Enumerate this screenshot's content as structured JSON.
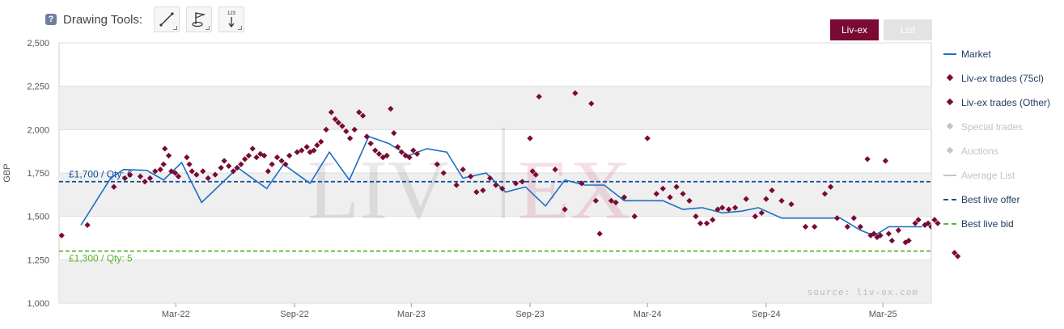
{
  "toolbar": {
    "help_label": "?",
    "title": "Drawing Tools:",
    "tools": [
      {
        "name": "line-tool",
        "icon": "diagonal-line-icon"
      },
      {
        "name": "flag-tool",
        "icon": "flag-marker-icon"
      },
      {
        "name": "value-marker-tool",
        "icon": "number-arrow-icon",
        "label": "123"
      }
    ]
  },
  "tabs": [
    {
      "label": "Liv-ex",
      "active": true
    },
    {
      "label": "List",
      "active": false
    }
  ],
  "legend": [
    {
      "label": "Market",
      "symbol": "line",
      "color": "#1a6fc4",
      "enabled": true
    },
    {
      "label": "Liv-ex trades (75cl)",
      "symbol": "diamond",
      "color": "#7a0a33",
      "enabled": true
    },
    {
      "label": "Liv-ex trades (Other)",
      "symbol": "diamond",
      "color": "#7a0a33",
      "enabled": true
    },
    {
      "label": "Special trades",
      "symbol": "diamond",
      "color": "#c4c4c4",
      "enabled": false
    },
    {
      "label": "Auctions",
      "symbol": "diamond",
      "color": "#c4c4c4",
      "enabled": false
    },
    {
      "label": "Average List",
      "symbol": "line",
      "color": "#c4c4c4",
      "enabled": false
    },
    {
      "label": "Best live offer",
      "symbol": "dash",
      "color": "#0d4f9c",
      "enabled": true
    },
    {
      "label": "Best live bid",
      "symbol": "dash",
      "color": "#5ab52e",
      "enabled": true
    }
  ],
  "chart_data": {
    "type": "scatter",
    "ylabel": "GBP",
    "ylim": [
      1000,
      2500
    ],
    "yticks": [
      1000,
      1250,
      1500,
      1750,
      2000,
      2250,
      2500
    ],
    "ytick_labels": [
      "1,000",
      "1,250",
      "1,500",
      "1,750",
      "2,000",
      "2,250",
      "2,500"
    ],
    "x_range": [
      "2021-09-01",
      "2025-05-15"
    ],
    "xticks": [
      "2022-03-01",
      "2022-09-01",
      "2023-03-01",
      "2023-09-01",
      "2024-03-01",
      "2024-09-01",
      "2025-03-01"
    ],
    "xtick_labels": [
      "Mar-22",
      "Sep-22",
      "Mar-23",
      "Sep-23",
      "Mar-24",
      "Sep-24",
      "Mar-25"
    ],
    "grid": "alternating horizontal bands",
    "watermark": "LIV-EX",
    "source_note": "source: liv-ex.com",
    "best_offer": {
      "value": 1700,
      "label": "£1,700 / Qty: 6",
      "color": "#0d4f9c"
    },
    "best_bid": {
      "value": 1300,
      "label": "£1,300 / Qty: 5",
      "color": "#5ab52e"
    },
    "series": [
      {
        "name": "Market",
        "kind": "line",
        "color": "#1a6fc4",
        "points": [
          [
            "2021-10-05",
            1450
          ],
          [
            "2021-11-20",
            1720
          ],
          [
            "2021-12-10",
            1770
          ],
          [
            "2022-01-15",
            1765
          ],
          [
            "2022-02-10",
            1710
          ],
          [
            "2022-03-10",
            1810
          ],
          [
            "2022-04-10",
            1580
          ],
          [
            "2022-06-05",
            1780
          ],
          [
            "2022-07-20",
            1660
          ],
          [
            "2022-08-15",
            1800
          ],
          [
            "2022-09-25",
            1690
          ],
          [
            "2022-10-25",
            1870
          ],
          [
            "2022-11-25",
            1710
          ],
          [
            "2022-12-25",
            1960
          ],
          [
            "2023-01-25",
            1920
          ],
          [
            "2023-02-25",
            1850
          ],
          [
            "2023-03-25",
            1890
          ],
          [
            "2023-04-25",
            1870
          ],
          [
            "2023-05-20",
            1720
          ],
          [
            "2023-06-25",
            1750
          ],
          [
            "2023-07-25",
            1640
          ],
          [
            "2023-08-25",
            1670
          ],
          [
            "2023-09-25",
            1560
          ],
          [
            "2023-10-25",
            1710
          ],
          [
            "2023-11-25",
            1680
          ],
          [
            "2023-12-25",
            1680
          ],
          [
            "2024-01-25",
            1590
          ],
          [
            "2024-02-25",
            1590
          ],
          [
            "2024-03-25",
            1590
          ],
          [
            "2024-04-25",
            1540
          ],
          [
            "2024-05-25",
            1550
          ],
          [
            "2024-06-25",
            1520
          ],
          [
            "2024-07-25",
            1530
          ],
          [
            "2024-08-20",
            1550
          ],
          [
            "2024-09-25",
            1490
          ],
          [
            "2024-10-25",
            1490
          ],
          [
            "2024-11-25",
            1490
          ],
          [
            "2024-12-25",
            1490
          ],
          [
            "2025-01-25",
            1420
          ],
          [
            "2025-02-15",
            1390
          ],
          [
            "2025-02-25",
            1410
          ],
          [
            "2025-03-10",
            1440
          ],
          [
            "2025-04-10",
            1440
          ],
          [
            "2025-05-01",
            1440
          ]
        ]
      },
      {
        "name": "Liv-ex trades (75cl)",
        "kind": "scatter",
        "color": "#7a0a33",
        "points": [
          [
            "2021-09-05",
            1390
          ],
          [
            "2021-10-15",
            1450
          ],
          [
            "2021-11-25",
            1670
          ],
          [
            "2021-12-12",
            1720
          ],
          [
            "2021-12-20",
            1740
          ],
          [
            "2022-01-05",
            1730
          ],
          [
            "2022-01-12",
            1700
          ],
          [
            "2022-01-20",
            1720
          ],
          [
            "2022-01-28",
            1760
          ],
          [
            "2022-02-05",
            1770
          ],
          [
            "2022-02-10",
            1800
          ],
          [
            "2022-02-12",
            1890
          ],
          [
            "2022-02-18",
            1850
          ],
          [
            "2022-02-22",
            1760
          ],
          [
            "2022-02-28",
            1750
          ],
          [
            "2022-03-05",
            1730
          ],
          [
            "2022-03-18",
            1840
          ],
          [
            "2022-03-22",
            1800
          ],
          [
            "2022-03-26",
            1760
          ],
          [
            "2022-04-02",
            1740
          ],
          [
            "2022-04-12",
            1760
          ],
          [
            "2022-04-20",
            1720
          ],
          [
            "2022-05-01",
            1740
          ],
          [
            "2022-05-10",
            1780
          ],
          [
            "2022-05-15",
            1820
          ],
          [
            "2022-05-22",
            1790
          ],
          [
            "2022-05-29",
            1760
          ],
          [
            "2022-06-04",
            1780
          ],
          [
            "2022-06-10",
            1800
          ],
          [
            "2022-06-16",
            1830
          ],
          [
            "2022-06-22",
            1850
          ],
          [
            "2022-06-28",
            1890
          ],
          [
            "2022-07-04",
            1840
          ],
          [
            "2022-07-10",
            1860
          ],
          [
            "2022-07-16",
            1850
          ],
          [
            "2022-07-22",
            1760
          ],
          [
            "2022-07-28",
            1800
          ],
          [
            "2022-08-05",
            1840
          ],
          [
            "2022-08-12",
            1820
          ],
          [
            "2022-08-18",
            1800
          ],
          [
            "2022-08-24",
            1850
          ],
          [
            "2022-09-05",
            1870
          ],
          [
            "2022-09-12",
            1880
          ],
          [
            "2022-09-20",
            1900
          ],
          [
            "2022-09-25",
            1870
          ],
          [
            "2022-10-01",
            1880
          ],
          [
            "2022-10-06",
            1910
          ],
          [
            "2022-10-12",
            1930
          ],
          [
            "2022-10-20",
            2000
          ],
          [
            "2022-10-28",
            2100
          ],
          [
            "2022-11-03",
            2060
          ],
          [
            "2022-11-08",
            2040
          ],
          [
            "2022-11-14",
            2020
          ],
          [
            "2022-11-20",
            1990
          ],
          [
            "2022-11-26",
            1950
          ],
          [
            "2022-12-03",
            2000
          ],
          [
            "2022-12-10",
            2100
          ],
          [
            "2022-12-16",
            2080
          ],
          [
            "2022-12-22",
            1960
          ],
          [
            "2022-12-28",
            1920
          ],
          [
            "2023-01-04",
            1880
          ],
          [
            "2023-01-10",
            1860
          ],
          [
            "2023-01-16",
            1840
          ],
          [
            "2023-01-22",
            1850
          ],
          [
            "2023-01-28",
            2120
          ],
          [
            "2023-02-02",
            1980
          ],
          [
            "2023-02-08",
            1900
          ],
          [
            "2023-02-14",
            1870
          ],
          [
            "2023-02-20",
            1850
          ],
          [
            "2023-02-26",
            1840
          ],
          [
            "2023-03-04",
            1880
          ],
          [
            "2023-03-10",
            1860
          ],
          [
            "2023-04-10",
            1800
          ],
          [
            "2023-04-20",
            1750
          ],
          [
            "2023-05-10",
            1680
          ],
          [
            "2023-05-20",
            1770
          ],
          [
            "2023-06-01",
            1730
          ],
          [
            "2023-06-10",
            1640
          ],
          [
            "2023-06-20",
            1650
          ],
          [
            "2023-07-01",
            1720
          ],
          [
            "2023-07-10",
            1680
          ],
          [
            "2023-07-20",
            1660
          ],
          [
            "2023-08-10",
            1690
          ],
          [
            "2023-08-20",
            1700
          ],
          [
            "2023-09-01",
            1950
          ],
          [
            "2023-09-05",
            1760
          ],
          [
            "2023-09-10",
            1740
          ],
          [
            "2023-09-15",
            2190
          ],
          [
            "2023-10-10",
            1770
          ],
          [
            "2023-10-25",
            1540
          ],
          [
            "2023-11-10",
            2210
          ],
          [
            "2023-11-20",
            1690
          ],
          [
            "2023-12-05",
            2150
          ],
          [
            "2023-12-12",
            1590
          ],
          [
            "2023-12-18",
            1400
          ],
          [
            "2024-01-05",
            1590
          ],
          [
            "2024-01-12",
            1580
          ],
          [
            "2024-01-25",
            1610
          ],
          [
            "2024-02-10",
            1500
          ],
          [
            "2024-03-01",
            1950
          ],
          [
            "2024-03-15",
            1630
          ],
          [
            "2024-03-25",
            1660
          ],
          [
            "2024-04-05",
            1610
          ],
          [
            "2024-04-15",
            1670
          ],
          [
            "2024-04-25",
            1630
          ],
          [
            "2024-05-05",
            1590
          ],
          [
            "2024-05-15",
            1500
          ],
          [
            "2024-05-22",
            1460
          ],
          [
            "2024-06-01",
            1460
          ],
          [
            "2024-06-10",
            1480
          ],
          [
            "2024-06-18",
            1540
          ],
          [
            "2024-06-25",
            1550
          ],
          [
            "2024-07-05",
            1540
          ],
          [
            "2024-07-15",
            1550
          ],
          [
            "2024-08-01",
            1600
          ],
          [
            "2024-08-15",
            1500
          ],
          [
            "2024-08-25",
            1520
          ],
          [
            "2024-09-01",
            1600
          ],
          [
            "2024-09-10",
            1650
          ],
          [
            "2024-09-25",
            1590
          ],
          [
            "2024-10-10",
            1570
          ],
          [
            "2024-11-01",
            1440
          ],
          [
            "2024-11-15",
            1440
          ],
          [
            "2024-12-01",
            1630
          ],
          [
            "2024-12-10",
            1670
          ],
          [
            "2024-12-20",
            1490
          ],
          [
            "2025-01-05",
            1440
          ],
          [
            "2025-01-15",
            1490
          ],
          [
            "2025-01-25",
            1440
          ],
          [
            "2025-02-05",
            1830
          ],
          [
            "2025-02-10",
            1390
          ],
          [
            "2025-02-15",
            1400
          ],
          [
            "2025-02-20",
            1380
          ],
          [
            "2025-02-25",
            1390
          ],
          [
            "2025-03-05",
            1820
          ],
          [
            "2025-03-10",
            1400
          ],
          [
            "2025-03-15",
            1360
          ],
          [
            "2025-03-25",
            1420
          ],
          [
            "2025-04-05",
            1350
          ],
          [
            "2025-04-10",
            1360
          ],
          [
            "2025-04-20",
            1460
          ],
          [
            "2025-04-25",
            1480
          ],
          [
            "2025-05-05",
            1450
          ],
          [
            "2025-05-10",
            1460
          ],
          [
            "2025-05-15",
            1440
          ],
          [
            "2025-05-20",
            1480
          ],
          [
            "2025-05-25",
            1460
          ]
        ]
      },
      {
        "name": "Liv-ex trades (Other)",
        "kind": "scatter",
        "color": "#7a0a33",
        "points": [
          [
            "2025-06-20",
            1290
          ],
          [
            "2025-06-25",
            1270
          ]
        ]
      }
    ]
  }
}
